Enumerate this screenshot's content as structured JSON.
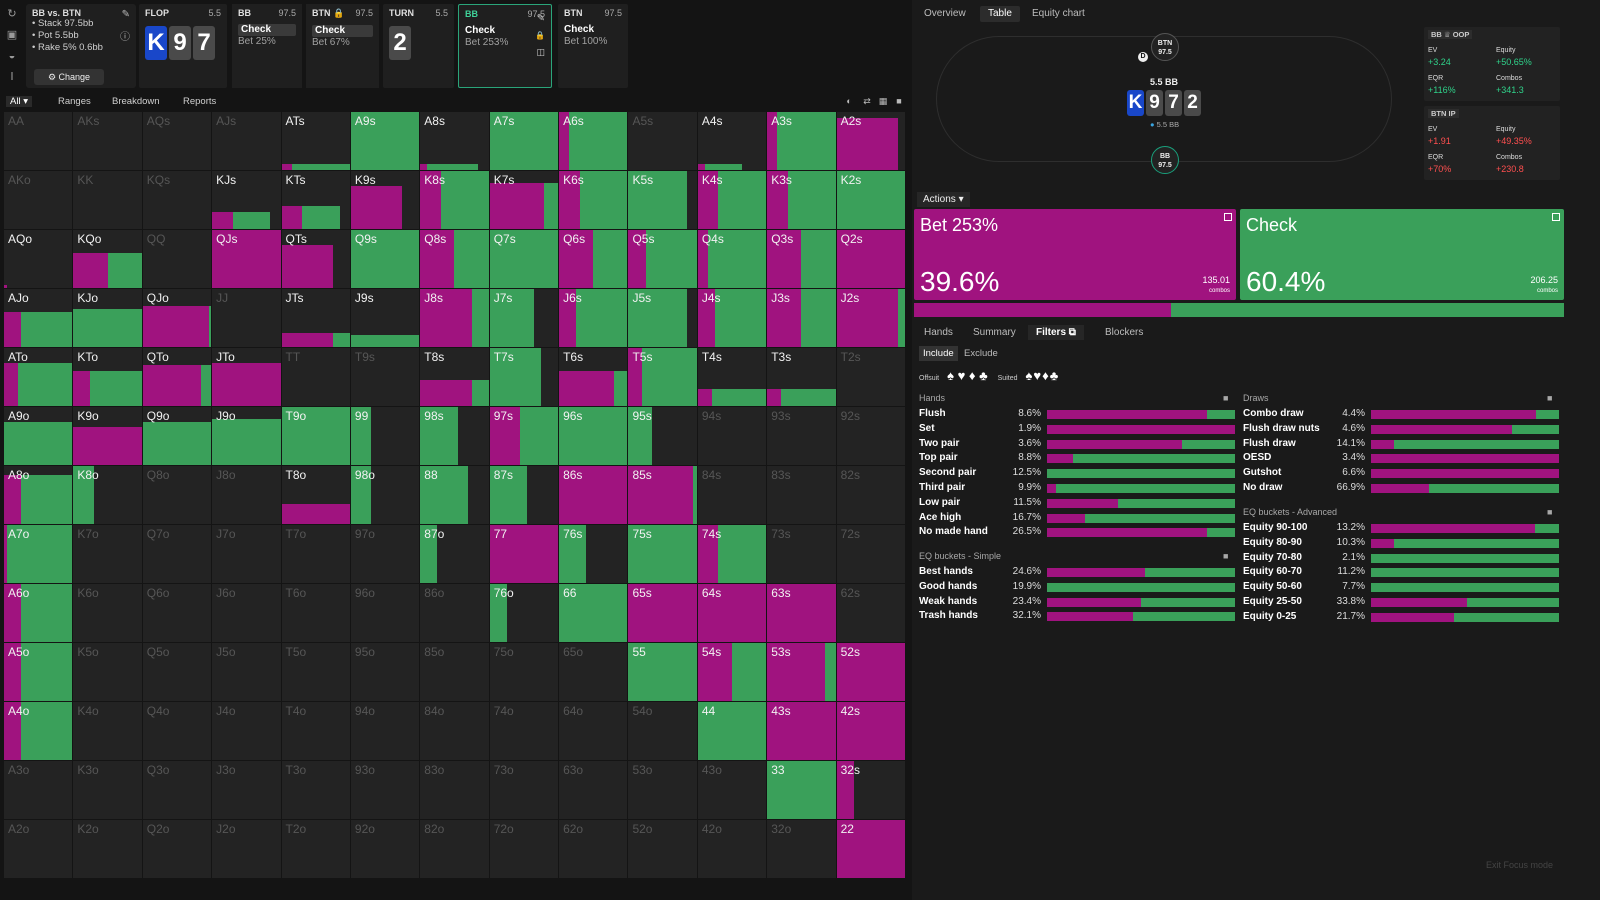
{
  "spot": {
    "title": "BB vs. BTN",
    "lines": [
      "• Stack 97.5bb",
      "• Pot 5.5bb",
      "• Rake 5% 0.6bb"
    ],
    "change_label": "⚙ Change"
  },
  "steps": [
    {
      "id": "flop",
      "head": "FLOP",
      "amount": "5.5",
      "cards": [
        {
          "r": "K",
          "c": "k"
        },
        {
          "r": "9",
          "c": "g"
        },
        {
          "r": "7",
          "c": "g"
        }
      ]
    },
    {
      "id": "bb1",
      "head": "BB",
      "amount": "97.5",
      "act": "Check",
      "sub": "Bet 25%"
    },
    {
      "id": "btn1",
      "head": "BTN 🔒",
      "amount": "97.5",
      "act": "Check",
      "sub": "Bet 67%"
    },
    {
      "id": "turn",
      "head": "TURN",
      "amount": "5.5",
      "cards": [
        {
          "r": "2",
          "c": "g"
        }
      ]
    },
    {
      "id": "bb2",
      "head": "BB",
      "amount": "97.5",
      "act": "Check",
      "sub": "Bet 253%"
    },
    {
      "id": "btn2",
      "head": "BTN",
      "amount": "97.5",
      "act": "Check",
      "sub": "Bet 100%"
    }
  ],
  "toolbar": {
    "all_label": "All",
    "tabs": [
      "Ranges",
      "Breakdown",
      "Reports"
    ]
  },
  "grid": [
    [
      "AA:e",
      "AKs:e",
      "AQs:e",
      "AJs:e",
      "ATs:10:15:85",
      "A9s:0:0:100",
      "A8s:10:10:75",
      "A7s:0:0:100",
      "A6s:0:15:85",
      "A5s:e",
      "A4s:10:10:55",
      "A3s:0:15:85",
      "A2s:90:90:0"
    ],
    [
      "AKo:e",
      "KK:e",
      "KQs:e",
      "KJs:30:30:55",
      "KTs:40:30:55",
      "K9s:75:75:0",
      "K8s:0:30:70",
      "K7s:80:80:20",
      "K6s:0:30:70",
      "K5s:0:0:85",
      "K4s:0:30:70",
      "K3s:0:30:70",
      "K2s:0:0:100"
    ],
    [
      "AQo:5:5:0",
      "KQo:60:50:50",
      "QQ:e",
      "QJs:100:100:0",
      "QTs:75:75:0",
      "Q9s:0:0:100",
      "Q8s:0:50:50",
      "Q7s:0:0:100",
      "Q6s:0:50:50",
      "Q5s:0:25:75",
      "Q4s:0:15:85",
      "Q3s:0:50:50",
      "Q2s:100:100:0"
    ],
    [
      "AJo:60:25:75",
      "KJo:65:0:100",
      "QJo:70:97:3",
      "JJ:e",
      "JTs:25:75:25",
      "J9s:20:0:100",
      "J8s:0:75:25",
      "J7s:0:0:65",
      "J6s:0:25:75",
      "J5s:0:0:85",
      "J4s:0:25:75",
      "J3s:0:50:50",
      "J2s:0:90:10"
    ],
    [
      "ATo:75:20:80",
      "KTo:60:25:75",
      "QTo:70:85:15",
      "JTo:75:100:0",
      "TT:e",
      "T9s:e",
      "T8s:45:75:25",
      "T7s:0:0:75",
      "T6s:60:80:20",
      "T5s:0:20:80",
      "T4s:30:20:80",
      "T3s:30:20:80",
      "T2s:e"
    ],
    [
      "A9o:75:0:100",
      "K9o:65:100:0",
      "Q9o:75:0:100",
      "J9o:80:0:100",
      "T9o:0:0:100",
      "99:0:0:30",
      "98s:0:0:55",
      "97s:0:45:55",
      "96s:0:0:100",
      "95s:0:0:35",
      "94s:e",
      "93s:e",
      "92s:e"
    ],
    [
      "A8o:85:25:75",
      "K8o:0:0:30",
      "Q8o:e",
      "J8o:e",
      "T8o:35:100:0",
      "98o:0:0:30",
      "88:0:0:70",
      "87s:0:0:55",
      "86s:0:100:0",
      "85s:0:95:5",
      "84s:e",
      "83s:e",
      "82s:e"
    ],
    [
      "A7o:0:5:95",
      "K7o:e",
      "Q7o:e",
      "J7o:e",
      "T7o:e",
      "97o:e",
      "87o:0:0:25",
      "77:0:100:0",
      "76s:0:0:40",
      "75s:0:0:100",
      "74s:0:30:70",
      "73s:e",
      "72s:e"
    ],
    [
      "A6o:0:25:75",
      "K6o:e",
      "Q6o:e",
      "J6o:e",
      "T6o:e",
      "96o:e",
      "86o:e",
      "76o:0:0:25",
      "66:0:0:100",
      "65s:0:100:0",
      "64s:0:100:0",
      "63s:0:100:0",
      "62s:e"
    ],
    [
      "A5o:0:25:75",
      "K5o:e",
      "Q5o:e",
      "J5o:e",
      "T5o:e",
      "95o:e",
      "85o:e",
      "75o:e",
      "65o:e",
      "55:0:0:100",
      "54s:0:50:50",
      "53s:0:85:15",
      "52s:0:100:0"
    ],
    [
      "A4o:0:25:75",
      "K4o:e",
      "Q4o:e",
      "J4o:e",
      "T4o:e",
      "94o:e",
      "84o:e",
      "74o:e",
      "64o:e",
      "54o:e",
      "44:0:0:100",
      "43s:0:100:0",
      "42s:0:100:0"
    ],
    [
      "A3o:e",
      "K3o:e",
      "Q3o:e",
      "J3o:e",
      "T3o:e",
      "93o:e",
      "83o:e",
      "73o:e",
      "63o:e",
      "53o:e",
      "43o:e",
      "33:0:0:100",
      "32s:0:25:0"
    ],
    [
      "A2o:e",
      "K2o:e",
      "Q2o:e",
      "J2o:e",
      "T2o:e",
      "92o:e",
      "82o:e",
      "72o:e",
      "62o:e",
      "52o:e",
      "42o:e",
      "32o:e",
      "22:0:100:0"
    ]
  ],
  "right_tabs": [
    "Overview",
    "Table",
    "Equity chart"
  ],
  "table": {
    "btn_seat": [
      "BTN",
      "97.5"
    ],
    "bb_seat": [
      "BB",
      "97.5"
    ],
    "pot": "5.5 BB",
    "pot_sub": "5.5 BB",
    "board": [
      {
        "r": "K",
        "c": "k"
      },
      {
        "r": "9",
        "c": "g"
      },
      {
        "r": "7",
        "c": "g"
      },
      {
        "r": "2",
        "c": "g"
      }
    ],
    "dealer": "D"
  },
  "stats": [
    {
      "title": "BB ♕ OOP",
      "ev": "+3.24",
      "eq": "+50.65%",
      "eqr": "+116%",
      "combos": "+341.3",
      "tone": "pos"
    },
    {
      "title": "BTN IP",
      "ev": "+1.91",
      "eq": "+49.35%",
      "eqr": "+70%",
      "combos": "+230.8",
      "tone": "neg"
    }
  ],
  "stat_keys": {
    "ev": "EV",
    "eq": "Equity",
    "eqr": "EQR",
    "combos": "Combos"
  },
  "actions_label": "Actions",
  "actions": [
    {
      "name": "Bet 253%",
      "pct": "39.6%",
      "combos": "135.01",
      "unit": "combos",
      "color": "#a0137f",
      "value": 39.6
    },
    {
      "name": "Check",
      "pct": "60.4%",
      "combos": "206.25",
      "unit": "combos",
      "color": "#3aa05a",
      "value": 60.4
    }
  ],
  "sub_tabs": [
    "Hands",
    "Summary",
    "Filters",
    "Blockers"
  ],
  "include_label": "Include",
  "exclude_label": "Exclude",
  "suits": {
    "offsuit": "Offsuit",
    "suited": "Suited",
    "offsuit_glyphs": "♠ ♥ ♦ ♣",
    "suited_glyphs": "♠♥♦♣"
  },
  "hands_title": "Hands",
  "hands": [
    [
      "Flush",
      "8.6%",
      85
    ],
    [
      "Set",
      "1.9%",
      100
    ],
    [
      "Two pair",
      "3.6%",
      72
    ],
    [
      "Top pair",
      "8.8%",
      14
    ],
    [
      "Second pair",
      "12.5%",
      0
    ],
    [
      "Third pair",
      "9.9%",
      5
    ],
    [
      "Low pair",
      "11.5%",
      38
    ],
    [
      "Ace high",
      "16.7%",
      20
    ],
    [
      "No made hand",
      "26.5%",
      85
    ]
  ],
  "eq_simple_title": "EQ buckets - Simple",
  "eq_simple": [
    [
      "Best hands",
      "24.6%",
      52
    ],
    [
      "Good hands",
      "19.9%",
      0
    ],
    [
      "Weak hands",
      "23.4%",
      50
    ],
    [
      "Trash hands",
      "32.1%",
      46
    ]
  ],
  "draws_title": "Draws",
  "draws": [
    [
      "Combo draw",
      "4.4%",
      88
    ],
    [
      "Flush draw nuts",
      "4.6%",
      75
    ],
    [
      "Flush draw",
      "14.1%",
      12
    ],
    [
      "OESD",
      "3.4%",
      100
    ],
    [
      "Gutshot",
      "6.6%",
      100
    ],
    [
      "No draw",
      "66.9%",
      31
    ]
  ],
  "eq_adv_title": "EQ buckets - Advanced",
  "eq_adv": [
    [
      "Equity 90-100",
      "13.2%",
      87
    ],
    [
      "Equity 80-90",
      "10.3%",
      12
    ],
    [
      "Equity 70-80",
      "2.1%",
      0
    ],
    [
      "Equity 60-70",
      "11.2%",
      0
    ],
    [
      "Equity 50-60",
      "7.7%",
      0
    ],
    [
      "Equity 25-50",
      "33.8%",
      51
    ],
    [
      "Equity 0-25",
      "21.7%",
      44
    ]
  ],
  "exit_label": "Exit Focus mode",
  "colors": {
    "bet": "#a0137f",
    "check": "#3aa05a",
    "empty": "#232323"
  }
}
